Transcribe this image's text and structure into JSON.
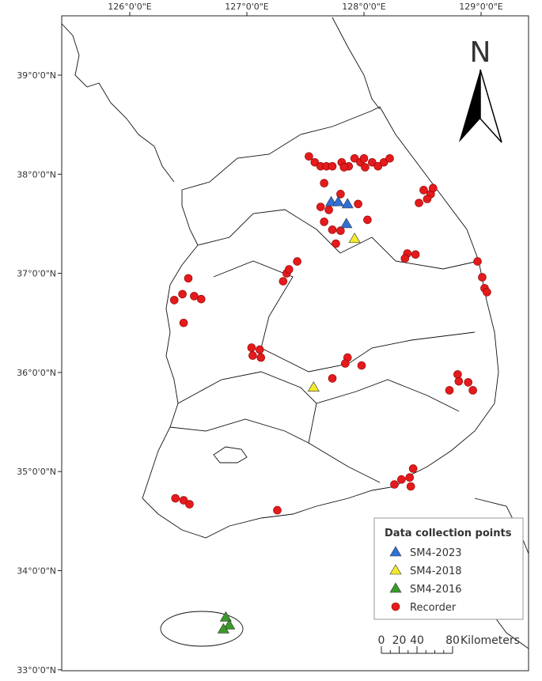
{
  "map": {
    "lon_ticks": [
      {
        "value": 126,
        "label": "126°0'0\"E"
      },
      {
        "value": 127,
        "label": "127°0'0\"E"
      },
      {
        "value": 128,
        "label": "128°0'0\"E"
      },
      {
        "value": 129,
        "label": "129°0'0\"E"
      }
    ],
    "lat_ticks": [
      {
        "value": 39,
        "label": "39°0'0\"N"
      },
      {
        "value": 38,
        "label": "38°0'0\"N"
      },
      {
        "value": 37,
        "label": "37°0'0\"N"
      },
      {
        "value": 36,
        "label": "36°0'0\"N"
      },
      {
        "value": 35,
        "label": "35°0'0\"N"
      },
      {
        "value": 34,
        "label": "34°0'0\"N"
      },
      {
        "value": 33,
        "label": "33°0'0\"N"
      }
    ],
    "north_label": "N",
    "legend_title": "Data collection points",
    "series": [
      {
        "name": "SM4-2023",
        "color": "#2f6fd6",
        "marker": "triangle",
        "points": [
          [
            127.72,
            37.72
          ],
          [
            127.78,
            37.72
          ],
          [
            127.86,
            37.7
          ],
          [
            127.85,
            37.5
          ]
        ]
      },
      {
        "name": "SM4-2018",
        "color": "#f2ea2a",
        "marker": "triangle",
        "points": [
          [
            127.92,
            37.35
          ],
          [
            127.57,
            35.85
          ]
        ]
      },
      {
        "name": "SM4-2016",
        "color": "#3a9a2a",
        "marker": "triangle",
        "points": [
          [
            126.82,
            33.53
          ],
          [
            126.85,
            33.45
          ],
          [
            126.8,
            33.41
          ]
        ]
      },
      {
        "name": "Recorder",
        "color": "#e41a1c",
        "marker": "circle",
        "points": [
          [
            127.53,
            38.18
          ],
          [
            127.58,
            38.12
          ],
          [
            127.63,
            38.08
          ],
          [
            127.68,
            38.08
          ],
          [
            127.73,
            38.08
          ],
          [
            127.81,
            38.12
          ],
          [
            127.87,
            38.08
          ],
          [
            127.92,
            38.16
          ],
          [
            127.97,
            38.12
          ],
          [
            128.01,
            38.07
          ],
          [
            128.07,
            38.12
          ],
          [
            128.12,
            38.08
          ],
          [
            128.17,
            38.12
          ],
          [
            128.22,
            38.16
          ],
          [
            128.0,
            38.16
          ],
          [
            127.83,
            38.07
          ],
          [
            127.66,
            37.91
          ],
          [
            127.63,
            37.67
          ],
          [
            127.7,
            37.64
          ],
          [
            127.8,
            37.8
          ],
          [
            127.66,
            37.52
          ],
          [
            127.73,
            37.44
          ],
          [
            127.8,
            37.43
          ],
          [
            127.76,
            37.3
          ],
          [
            127.95,
            37.7
          ],
          [
            128.03,
            37.54
          ],
          [
            128.51,
            37.84
          ],
          [
            128.57,
            37.8
          ],
          [
            128.54,
            37.75
          ],
          [
            128.47,
            37.71
          ],
          [
            128.59,
            37.86
          ],
          [
            128.37,
            37.2
          ],
          [
            128.44,
            37.19
          ],
          [
            128.35,
            37.15
          ],
          [
            128.97,
            37.12
          ],
          [
            129.01,
            36.96
          ],
          [
            129.03,
            36.85
          ],
          [
            129.05,
            36.81
          ],
          [
            127.43,
            37.12
          ],
          [
            127.34,
            37.0
          ],
          [
            127.31,
            36.92
          ],
          [
            127.36,
            37.04
          ],
          [
            126.5,
            36.95
          ],
          [
            126.38,
            36.73
          ],
          [
            126.45,
            36.79
          ],
          [
            126.55,
            36.77
          ],
          [
            126.61,
            36.74
          ],
          [
            126.46,
            36.5
          ],
          [
            127.04,
            36.25
          ],
          [
            127.11,
            36.23
          ],
          [
            127.05,
            36.17
          ],
          [
            127.12,
            36.15
          ],
          [
            127.86,
            36.15
          ],
          [
            127.84,
            36.09
          ],
          [
            127.98,
            36.07
          ],
          [
            127.73,
            35.94
          ],
          [
            128.8,
            35.98
          ],
          [
            128.81,
            35.91
          ],
          [
            128.73,
            35.82
          ],
          [
            128.89,
            35.9
          ],
          [
            128.93,
            35.82
          ],
          [
            128.26,
            34.87
          ],
          [
            128.32,
            34.92
          ],
          [
            128.39,
            34.94
          ],
          [
            128.42,
            35.03
          ],
          [
            128.4,
            34.85
          ],
          [
            126.39,
            34.73
          ],
          [
            126.46,
            34.71
          ],
          [
            126.51,
            34.67
          ],
          [
            127.26,
            34.61
          ]
        ]
      }
    ],
    "scale_bar": {
      "ticks": [
        0,
        20,
        40,
        80
      ],
      "unit": "Kilometers"
    }
  }
}
